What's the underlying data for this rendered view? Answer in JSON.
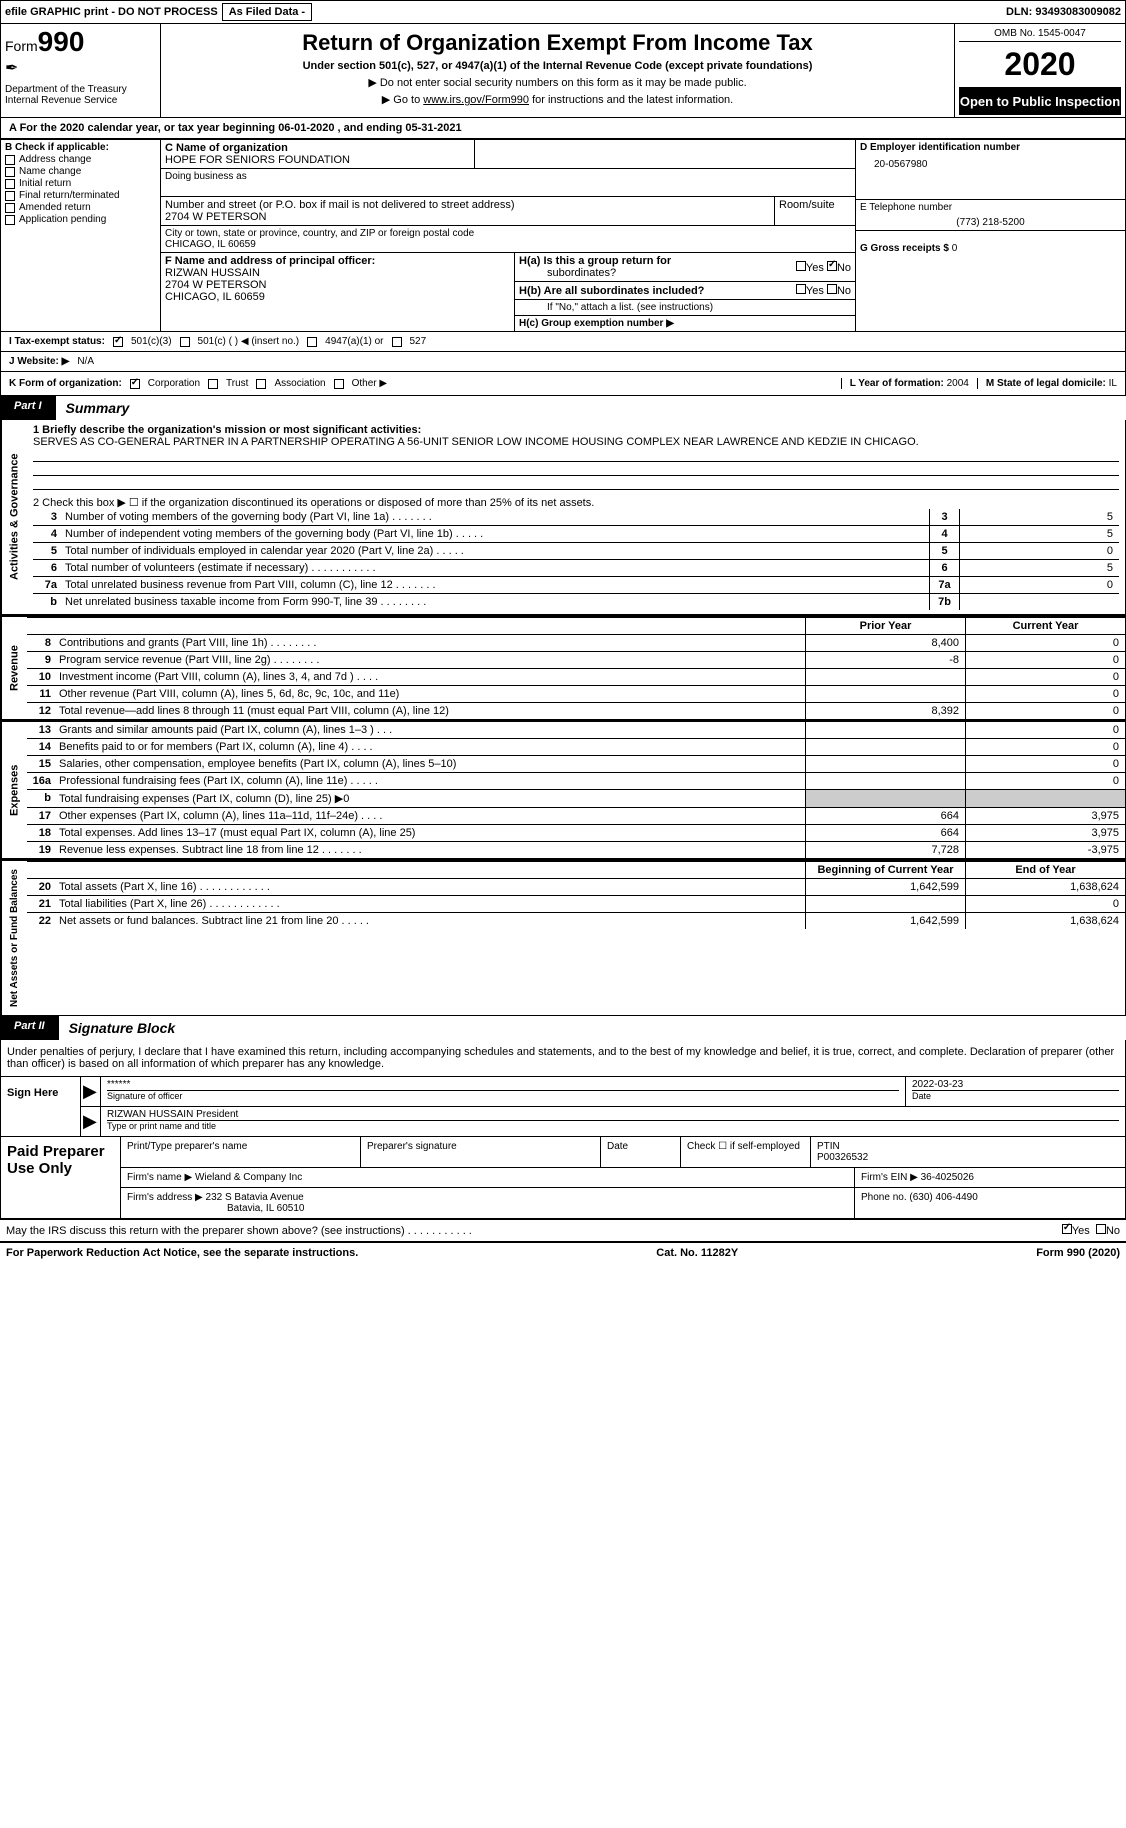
{
  "header": {
    "efile_text": "efile GRAPHIC print - DO NOT PROCESS",
    "asfiled": "As Filed Data -",
    "dln_label": "DLN:",
    "dln": "93493083009082"
  },
  "form": {
    "form_label": "Form",
    "form_no": "990",
    "dept": "Department of the Treasury",
    "irs": "Internal Revenue Service",
    "title": "Return of Organization Exempt From Income Tax",
    "subtitle": "Under section 501(c), 527, or 4947(a)(1) of the Internal Revenue Code (except private foundations)",
    "instr1": "▶ Do not enter social security numbers on this form as it may be made public.",
    "instr2_a": "▶ Go to ",
    "instr2_link": "www.irs.gov/Form990",
    "instr2_b": " for instructions and the latest information.",
    "omb": "OMB No. 1545-0047",
    "year": "2020",
    "open": "Open to Public Inspection"
  },
  "sectionA": {
    "a_text": "A   For the 2020 calendar year, or tax year beginning 06-01-2020   , and ending 05-31-2021",
    "b_label": "B Check if applicable:",
    "b_items": [
      "Address change",
      "Name change",
      "Initial return",
      "Final return/terminated",
      "Amended return",
      "Application pending"
    ],
    "c_label": "C Name of organization",
    "c_name": "HOPE FOR SENIORS FOUNDATION",
    "dba_label": "Doing business as",
    "addr_label": "Number and street (or P.O. box if mail is not delivered to street address)",
    "addr": "2704 W PETERSON",
    "room_label": "Room/suite",
    "city_label": "City or town, state or province, country, and ZIP or foreign postal code",
    "city": "CHICAGO, IL  60659",
    "d_label": "D Employer identification number",
    "d_ein": "20-0567980",
    "e_label": "E Telephone number",
    "e_phone": "(773) 218-5200",
    "g_label": "G Gross receipts $",
    "g_val": "0",
    "f_label": "F  Name and address of principal officer:",
    "f_name": "RIZWAN HUSSAIN",
    "f_addr1": "2704 W PETERSON",
    "f_addr2": "CHICAGO, IL  60659",
    "ha_label": "H(a)  Is this a group return for",
    "ha_sub": "subordinates?",
    "hb_label": "H(b)  Are all subordinates included?",
    "hb_note": "If \"No,\" attach a list. (see instructions)",
    "hc_label": "H(c)  Group exemption number ▶",
    "yes": "Yes",
    "no": "No"
  },
  "rowI": {
    "label": "I   Tax-exempt status:",
    "opt1": "501(c)(3)",
    "opt2": "501(c) (   ) ◀ (insert no.)",
    "opt3": "4947(a)(1) or",
    "opt4": "527"
  },
  "rowJ": {
    "label": "J   Website: ▶",
    "val": "N/A"
  },
  "rowK": {
    "label": "K Form of organization:",
    "opts": [
      "Corporation",
      "Trust",
      "Association",
      "Other ▶"
    ],
    "l_label": "L Year of formation:",
    "l_val": "2004",
    "m_label": "M State of legal domicile:",
    "m_val": "IL"
  },
  "part1": {
    "part": "Part I",
    "title": "Summary",
    "l1_label": "1  Briefly describe the organization's mission or most significant activities:",
    "l1_text": "SERVES AS CO-GENERAL PARTNER IN A PARTNERSHIP OPERATING A 56-UNIT SENIOR LOW INCOME HOUSING COMPLEX NEAR LAWRENCE AND KEDZIE IN CHICAGO.",
    "l2_label": "2   Check this box ▶ ☐  if the organization discontinued its operations or disposed of more than 25% of its net assets.",
    "vert1": "Activities & Governance",
    "lines_ag": [
      {
        "num": "3",
        "txt": "Number of voting members of the governing body (Part VI, line 1a)   .    .    .    .    .    .    .",
        "n": "3",
        "v": "5"
      },
      {
        "num": "4",
        "txt": "Number of independent voting members of the governing body (Part VI, line 1b)   .    .    .    .    .",
        "n": "4",
        "v": "5"
      },
      {
        "num": "5",
        "txt": "Total number of individuals employed in calendar year 2020 (Part V, line 2a)   .    .    .    .    .",
        "n": "5",
        "v": "0"
      },
      {
        "num": "6",
        "txt": "Total number of volunteers (estimate if necessary)   .    .    .    .    .    .    .    .    .    .    .",
        "n": "6",
        "v": "5"
      },
      {
        "num": "7a",
        "txt": "Total unrelated business revenue from Part VIII, column (C), line 12   .    .    .    .    .    .    .",
        "n": "7a",
        "v": "0"
      },
      {
        "num": "b",
        "txt": "Net unrelated business taxable income from Form 990-T, line 39   .    .    .    .    .    .    .    .",
        "n": "7b",
        "v": ""
      }
    ],
    "py": "Prior Year",
    "cy": "Current Year",
    "vert2": "Revenue",
    "lines_rev": [
      {
        "num": "8",
        "txt": "Contributions and grants (Part VIII, line 1h)   .    .    .    .    .    .    .    .",
        "py": "8,400",
        "cy": "0"
      },
      {
        "num": "9",
        "txt": "Program service revenue (Part VIII, line 2g)   .    .    .    .    .    .    .    .",
        "py": "-8",
        "cy": "0"
      },
      {
        "num": "10",
        "txt": "Investment income (Part VIII, column (A), lines 3, 4, and 7d )   .    .    .    .",
        "py": "",
        "cy": "0"
      },
      {
        "num": "11",
        "txt": "Other revenue (Part VIII, column (A), lines 5, 6d, 8c, 9c, 10c, and 11e)",
        "py": "",
        "cy": "0"
      },
      {
        "num": "12",
        "txt": "Total revenue—add lines 8 through 11 (must equal Part VIII, column (A), line 12)",
        "py": "8,392",
        "cy": "0"
      }
    ],
    "vert3": "Expenses",
    "lines_exp": [
      {
        "num": "13",
        "txt": "Grants and similar amounts paid (Part IX, column (A), lines 1–3 )   .    .    .",
        "py": "",
        "cy": "0"
      },
      {
        "num": "14",
        "txt": "Benefits paid to or for members (Part IX, column (A), line 4)   .    .    .    .",
        "py": "",
        "cy": "0"
      },
      {
        "num": "15",
        "txt": "Salaries, other compensation, employee benefits (Part IX, column (A), lines 5–10)",
        "py": "",
        "cy": "0"
      },
      {
        "num": "16a",
        "txt": "Professional fundraising fees (Part IX, column (A), line 11e)   .    .    .    .    .",
        "py": "",
        "cy": "0"
      },
      {
        "num": "b",
        "txt": "Total fundraising expenses (Part IX, column (D), line 25) ▶0",
        "py": "",
        "cy": "",
        "mask": true
      },
      {
        "num": "17",
        "txt": "Other expenses (Part IX, column (A), lines 11a–11d, 11f–24e)   .    .    .    .",
        "py": "664",
        "cy": "3,975"
      },
      {
        "num": "18",
        "txt": "Total expenses. Add lines 13–17 (must equal Part IX, column (A), line 25)",
        "py": "664",
        "cy": "3,975"
      },
      {
        "num": "19",
        "txt": "Revenue less expenses. Subtract line 18 from line 12   .    .    .    .    .    .    .",
        "py": "7,728",
        "cy": "-3,975"
      }
    ],
    "vert4": "Net Assets or Fund Balances",
    "bcy": "Beginning of Current Year",
    "eoy": "End of Year",
    "lines_na": [
      {
        "num": "20",
        "txt": "Total assets (Part X, line 16)   .    .    .    .    .    .    .    .    .    .    .    .",
        "py": "1,642,599",
        "cy": "1,638,624"
      },
      {
        "num": "21",
        "txt": "Total liabilities (Part X, line 26)   .    .    .    .    .    .    .    .    .    .    .    .",
        "py": "",
        "cy": "0"
      },
      {
        "num": "22",
        "txt": "Net assets or fund balances. Subtract line 21 from line 20   .    .    .    .    .",
        "py": "1,642,599",
        "cy": "1,638,624"
      }
    ]
  },
  "part2": {
    "part": "Part II",
    "title": "Signature Block",
    "declaration": "Under penalties of perjury, I declare that I have examined this return, including accompanying schedules and statements, and to the best of my knowledge and belief, it is true, correct, and complete. Declaration of preparer (other than officer) is based on all information of which preparer has any knowledge.",
    "sign_here": "Sign Here",
    "stars": "******",
    "sig_officer": "Signature of officer",
    "date": "2022-03-23",
    "date_label": "Date",
    "officer_name": "RIZWAN HUSSAIN  President",
    "type_name": "Type or print name and title",
    "paid_label": "Paid Preparer Use Only",
    "prep_name_label": "Print/Type preparer's name",
    "prep_sig_label": "Preparer's signature",
    "prep_date_label": "Date",
    "check_if": "Check ☐ if self-employed",
    "ptin_label": "PTIN",
    "ptin": "P00326532",
    "firm_name_label": "Firm's name    ▶",
    "firm_name": "Wieland & Company Inc",
    "firm_ein_label": "Firm's EIN ▶",
    "firm_ein": "36-4025026",
    "firm_addr_label": "Firm's address ▶",
    "firm_addr1": "232 S Batavia Avenue",
    "firm_addr2": "Batavia, IL  60510",
    "phone_label": "Phone no.",
    "phone": "(630) 406-4490",
    "discuss": "May the IRS discuss this return with the preparer shown above? (see instructions)   .    .    .    .    .    .    .    .    .    .    .",
    "yes": "Yes",
    "no": "No"
  },
  "footer": {
    "paperwork": "For Paperwork Reduction Act Notice, see the separate instructions.",
    "cat": "Cat. No. 11282Y",
    "form": "Form 990 (2020)"
  }
}
